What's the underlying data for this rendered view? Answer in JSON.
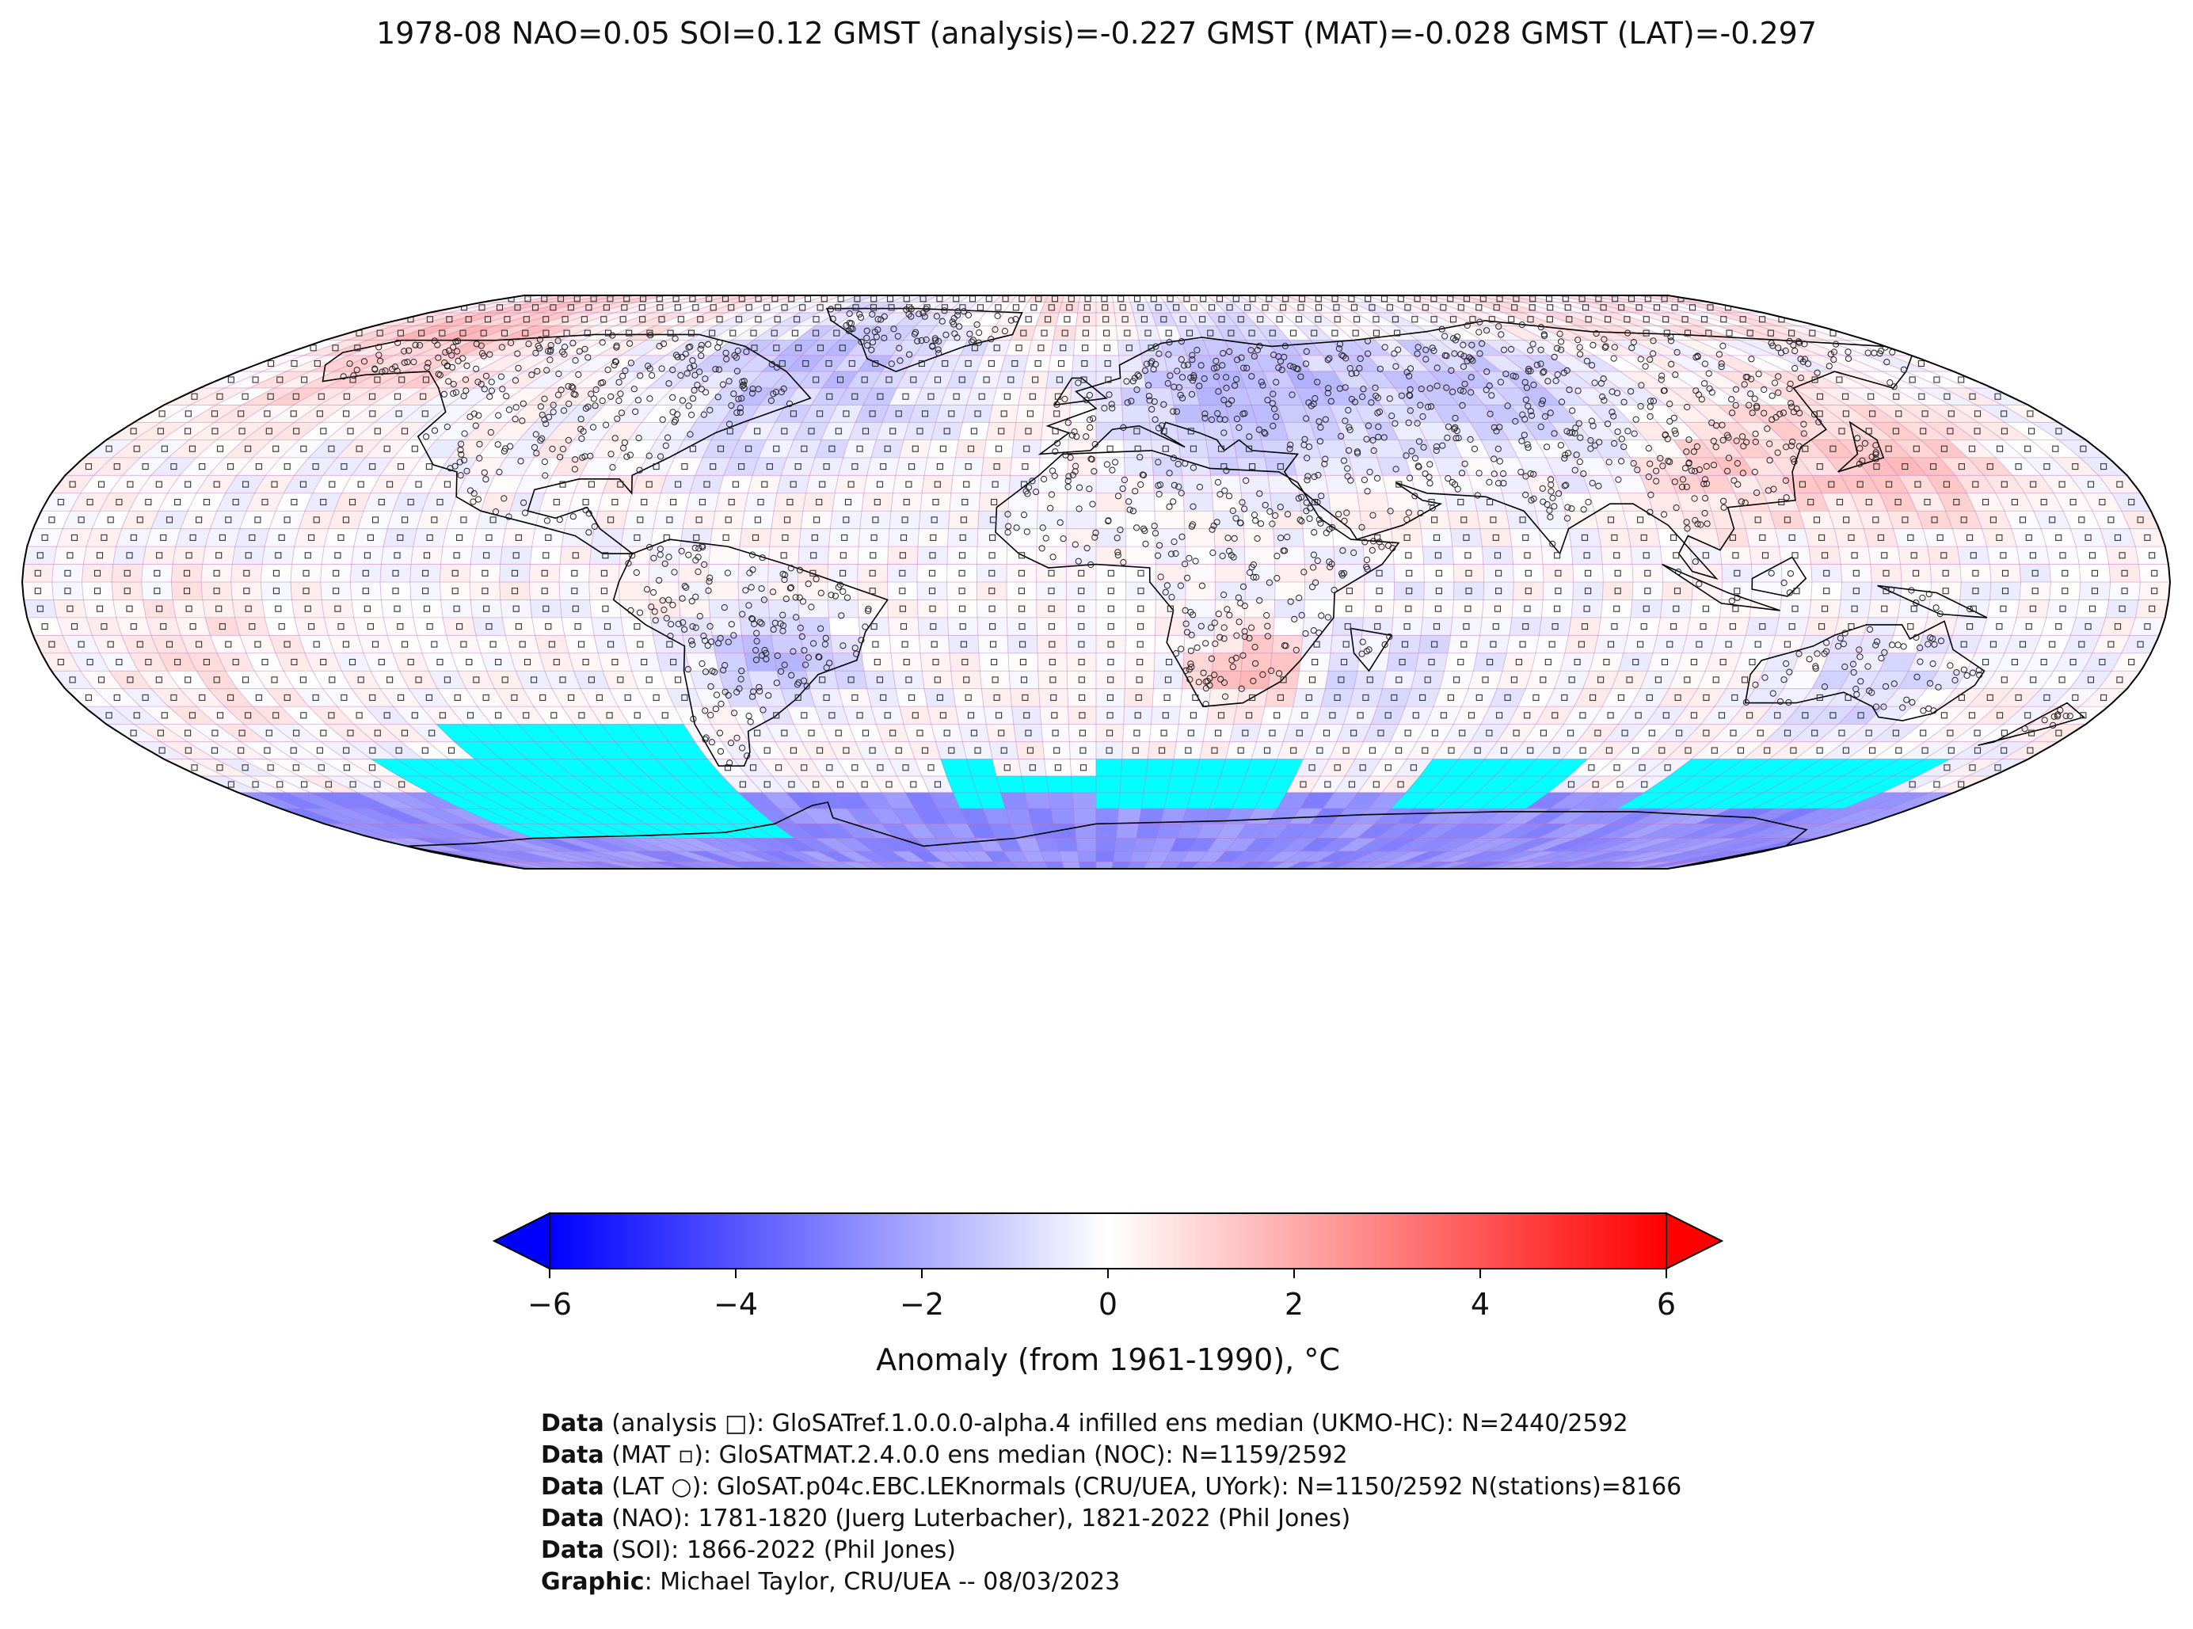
{
  "title": "1978-08 NAO=0.05 SOI=0.12 GMST (analysis)=-0.227 GMST (MAT)=-0.028 GMST (LAT)=-0.297",
  "map": {
    "projection": "robinson",
    "colormap": "bwr",
    "missing_color": "#00ffff",
    "coast_color": "#000000",
    "gridline_color": "#c070c0",
    "grid_resolution_deg": 5,
    "marker_types": [
      "square",
      "small-square",
      "circle"
    ]
  },
  "colorbar": {
    "label": "Anomaly (from 1961-1990), °C",
    "range": [
      -6,
      6
    ],
    "ticks": [
      "−6",
      "−4",
      "−2",
      "0",
      "2",
      "4",
      "6"
    ],
    "extend": "both",
    "low_color": "#0000ff",
    "mid_color": "#ffffff",
    "high_color": "#ff0000"
  },
  "credits": [
    {
      "bold": "Data",
      "text": " (analysis □): GloSATref.1.0.0.0-alpha.4 infilled ens median (UKMO-HC): N=2440/2592"
    },
    {
      "bold": "Data",
      "text": " (MAT ▫): GloSATMAT.2.4.0.0 ens median (NOC): N=1159/2592"
    },
    {
      "bold": "Data",
      "text": " (LAT ○): GloSAT.p04c.EBC.LEKnormals (CRU/UEA, UYork): N=1150/2592 N(stations)=8166"
    },
    {
      "bold": "Data",
      "text": " (NAO): 1781-1820 (Juerg Luterbacher), 1821-2022 (Phil Jones)"
    },
    {
      "bold": "Data",
      "text": " (SOI): 1866-2022 (Phil Jones)"
    },
    {
      "bold": "Graphic",
      "text": ": Michael Taylor, CRU/UEA -- 08/03/2023"
    }
  ]
}
